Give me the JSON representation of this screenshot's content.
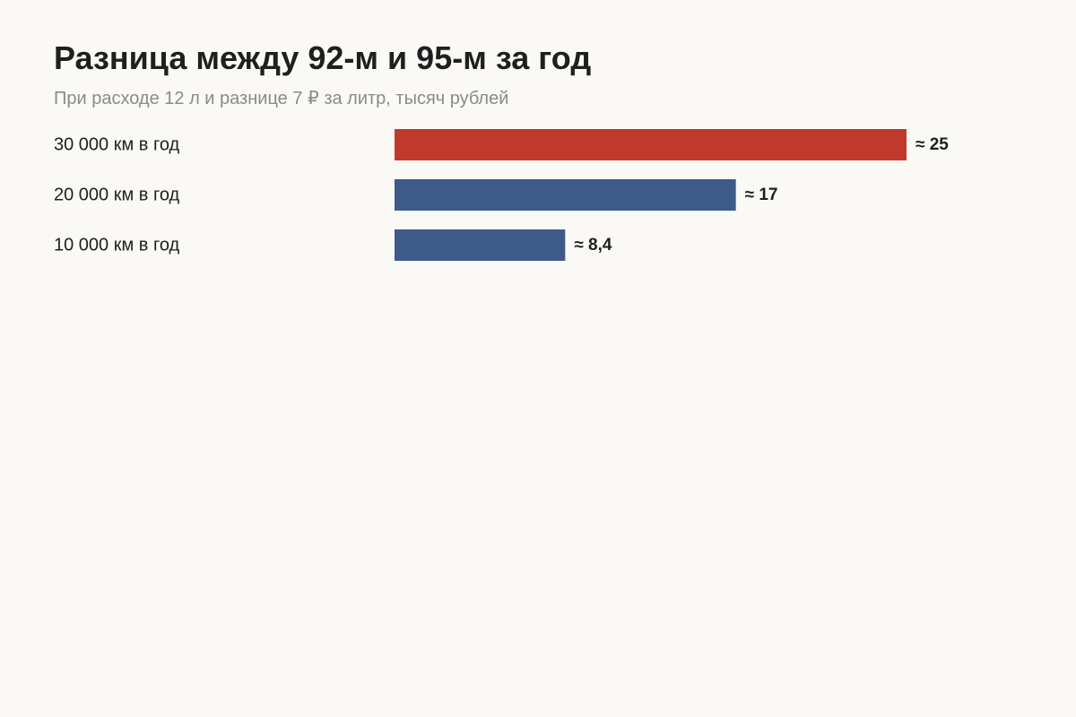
{
  "title": "Разница между 92-м и 95-м за год",
  "subtitle": "При расходе 12 л и разнице 7 ₽ за литр, тысяч рублей",
  "colors": {
    "background": "#faf9f6",
    "highlight": "#c0392b",
    "default": "#3d5a89"
  },
  "chart_data": {
    "type": "bar",
    "orientation": "horizontal",
    "title": "Разница между 92-м и 95-м за год",
    "subtitle": "При расходе 12 л и разнице 7 ₽ за литр, тысяч рублей",
    "categories": [
      "30 000 км в год",
      "20 000 км в год",
      "10 000 км в год"
    ],
    "values": [
      25.2,
      16.8,
      8.4
    ],
    "value_labels": [
      "≈ 25",
      "≈ 17",
      "≈ 8,4"
    ],
    "highlighted": [
      true,
      false,
      false
    ],
    "xlim": [
      0,
      25.2
    ],
    "grid": false,
    "legend": "none"
  }
}
